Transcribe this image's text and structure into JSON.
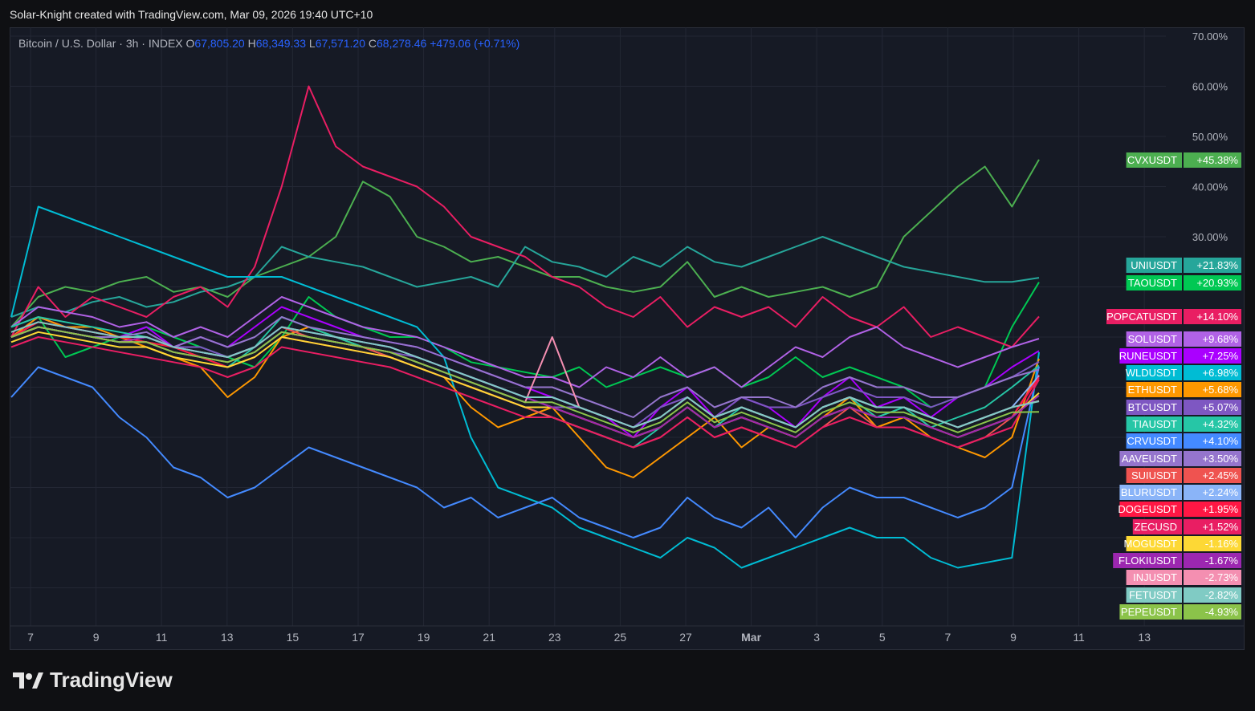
{
  "caption": "Solar-Knight created with TradingView.com, Mar 09, 2026 19:40 UTC+10",
  "legend": {
    "symbol": "Bitcoin / U.S. Dollar · 3h · INDEX",
    "o_label": "O",
    "o_value": "67,805.20",
    "h_label": "H",
    "h_value": "68,349.33",
    "l_label": "L",
    "l_value": "67,571.20",
    "c_label": "C",
    "c_value": "68,278.46",
    "change": "+479.06 (+0.71%)"
  },
  "brand": "TradingView",
  "chart_data": {
    "type": "line",
    "ylim": [
      -70,
      70
    ],
    "y_ticks": [
      70,
      60,
      50,
      40,
      30
    ],
    "y_tick_labels": [
      "70.00%",
      "60.00%",
      "50.00%",
      "40.00%",
      "30.00%"
    ],
    "x_ticks": [
      "7",
      "9",
      "11",
      "13",
      "15",
      "17",
      "19",
      "21",
      "23",
      "25",
      "27",
      "Mar",
      "3",
      "5",
      "7",
      "9",
      "11",
      "13"
    ],
    "grid": true,
    "series": [
      {
        "name": "CVXUSDT",
        "label": "+45.38%",
        "value": 45.38,
        "color": "#4caf50",
        "values": [
          12,
          18,
          20,
          19,
          21,
          22,
          19,
          20,
          18,
          22,
          24,
          26,
          30,
          41,
          38,
          30,
          28,
          25,
          26,
          24,
          22,
          22,
          20,
          19,
          20,
          25,
          18,
          20,
          18,
          19,
          20,
          18,
          20,
          30,
          35,
          40,
          44,
          36,
          45.38
        ]
      },
      {
        "name": "UNIUSDT",
        "label": "+21.83%",
        "value": 21.83,
        "color": "#26a69a",
        "values": [
          14,
          16,
          15,
          17,
          18,
          16,
          17,
          19,
          20,
          22,
          28,
          26,
          25,
          24,
          22,
          20,
          21,
          22,
          20,
          28,
          25,
          24,
          22,
          26,
          24,
          28,
          25,
          24,
          26,
          28,
          30,
          28,
          26,
          24,
          23,
          22,
          21,
          21,
          21.83
        ]
      },
      {
        "name": "TAOUSDT",
        "label": "+20.93%",
        "value": 20.93,
        "color": "#00c853",
        "values": [
          10,
          14,
          6,
          8,
          10,
          12,
          10,
          8,
          6,
          4,
          10,
          18,
          14,
          12,
          10,
          10,
          8,
          5,
          4,
          3,
          2,
          4,
          0,
          2,
          4,
          2,
          4,
          0,
          2,
          6,
          2,
          4,
          2,
          0,
          -4,
          -2,
          0,
          12,
          20.93
        ]
      },
      {
        "name": "POPCATUSDT",
        "label": "+14.10%",
        "value": 14.1,
        "color": "#e91e63",
        "values": [
          10,
          20,
          14,
          18,
          16,
          14,
          18,
          20,
          16,
          24,
          40,
          60,
          48,
          44,
          42,
          40,
          36,
          30,
          28,
          26,
          22,
          20,
          16,
          14,
          18,
          12,
          16,
          14,
          16,
          12,
          18,
          14,
          12,
          16,
          10,
          12,
          10,
          8,
          14.1
        ]
      },
      {
        "name": "SOLUSDT",
        "label": "+9.68%",
        "value": 9.68,
        "color": "#b162e6",
        "values": [
          12,
          16,
          15,
          14,
          12,
          13,
          10,
          12,
          10,
          14,
          18,
          16,
          14,
          12,
          11,
          10,
          8,
          6,
          4,
          2,
          2,
          0,
          4,
          2,
          6,
          2,
          4,
          0,
          4,
          8,
          6,
          10,
          12,
          8,
          6,
          4,
          6,
          8,
          9.68
        ]
      },
      {
        "name": "RUNEUSDT",
        "label": "+7.25%",
        "value": 7.25,
        "color": "#aa00ff",
        "values": [
          10,
          14,
          12,
          11,
          10,
          12,
          8,
          10,
          8,
          12,
          16,
          14,
          12,
          10,
          9,
          8,
          6,
          4,
          2,
          0,
          -2,
          -4,
          -6,
          -10,
          -4,
          0,
          -6,
          -2,
          -4,
          -8,
          -2,
          2,
          -4,
          -2,
          -6,
          -2,
          0,
          4,
          7.25
        ]
      },
      {
        "name": "WLDUSDT",
        "label": "+6.98%",
        "value": 6.98,
        "color": "#00bcd4",
        "values": [
          14,
          36,
          34,
          32,
          30,
          28,
          26,
          24,
          22,
          22,
          22,
          20,
          18,
          16,
          14,
          12,
          6,
          -10,
          -20,
          -22,
          -24,
          -28,
          -30,
          -32,
          -34,
          -30,
          -32,
          -36,
          -34,
          -32,
          -30,
          -28,
          -30,
          -30,
          -34,
          -36,
          -35,
          -34,
          6.98
        ]
      },
      {
        "name": "ETHUSDT",
        "label": "+5.68%",
        "value": 5.68,
        "color": "#ff9800",
        "values": [
          10,
          14,
          12,
          12,
          10,
          8,
          6,
          4,
          -2,
          2,
          10,
          12,
          10,
          8,
          6,
          4,
          2,
          -4,
          -8,
          -6,
          -4,
          -10,
          -16,
          -18,
          -14,
          -10,
          -6,
          -12,
          -8,
          -10,
          -6,
          -2,
          -8,
          -6,
          -10,
          -12,
          -14,
          -10,
          5.68
        ]
      },
      {
        "name": "BTCUSDT",
        "label": "+5.07%",
        "value": 5.07,
        "color": "#7e57c2",
        "values": [
          10,
          12,
          11,
          10,
          9,
          10,
          8,
          8,
          6,
          8,
          12,
          10,
          9,
          8,
          7,
          6,
          4,
          2,
          0,
          -2,
          -4,
          -4,
          -6,
          -8,
          -4,
          -2,
          -6,
          -2,
          -4,
          -4,
          -2,
          0,
          -2,
          -2,
          -4,
          -2,
          0,
          2,
          5.07
        ]
      },
      {
        "name": "TIAUSDT",
        "label": "+4.32%",
        "value": 4.32,
        "color": "#26c6a6",
        "values": [
          12,
          14,
          13,
          12,
          11,
          10,
          8,
          6,
          4,
          8,
          14,
          12,
          10,
          8,
          6,
          4,
          2,
          0,
          -2,
          -4,
          -6,
          -8,
          -10,
          -12,
          -8,
          -4,
          -8,
          -4,
          -6,
          -8,
          -4,
          -2,
          -6,
          -4,
          -8,
          -6,
          -4,
          0,
          4.32
        ]
      },
      {
        "name": "CRVUSDT",
        "label": "+4.10%",
        "value": 4.1,
        "color": "#448aff",
        "values": [
          -2,
          4,
          2,
          0,
          -6,
          -10,
          -16,
          -18,
          -22,
          -20,
          -16,
          -12,
          -14,
          -16,
          -18,
          -20,
          -24,
          -22,
          -26,
          -24,
          -22,
          -26,
          -28,
          -30,
          -28,
          -22,
          -26,
          -28,
          -24,
          -30,
          -24,
          -20,
          -22,
          -22,
          -24,
          -26,
          -24,
          -20,
          4.1
        ]
      },
      {
        "name": "AAVEUSDT",
        "label": "+3.50%",
        "value": 3.5,
        "color": "#9575cd",
        "values": [
          10,
          12,
          11,
          10,
          10,
          11,
          8,
          10,
          8,
          10,
          14,
          12,
          11,
          10,
          9,
          8,
          6,
          4,
          2,
          0,
          0,
          -2,
          -4,
          -6,
          -2,
          0,
          -4,
          -2,
          -2,
          -4,
          0,
          2,
          0,
          0,
          -2,
          -2,
          0,
          2,
          3.5
        ]
      },
      {
        "name": "SUIUSDT",
        "label": "+2.45%",
        "value": 2.45,
        "color": "#ef5350",
        "values": [
          10,
          13,
          12,
          11,
          10,
          9,
          8,
          7,
          6,
          8,
          12,
          10,
          9,
          8,
          6,
          4,
          2,
          0,
          -2,
          -4,
          -6,
          -8,
          -10,
          -12,
          -10,
          -6,
          -10,
          -8,
          -10,
          -12,
          -8,
          -4,
          -8,
          -8,
          -10,
          -12,
          -10,
          -6,
          2.45
        ]
      },
      {
        "name": "BLURUSDT",
        "label": "+2.24%",
        "value": 2.24,
        "color": "#8ab4f8",
        "values": [
          10,
          12,
          11,
          10,
          9,
          10,
          8,
          7,
          6,
          8,
          12,
          11,
          10,
          9,
          8,
          6,
          4,
          2,
          0,
          -2,
          -2,
          -4,
          -6,
          -8,
          -6,
          -2,
          -6,
          -4,
          -6,
          -8,
          -4,
          -2,
          -4,
          -4,
          -6,
          -8,
          -6,
          -4,
          2.24
        ]
      },
      {
        "name": "DOGEUSDT",
        "label": "+1.95%",
        "value": 1.95,
        "color": "#ff1744",
        "values": [
          10,
          13,
          12,
          11,
          10,
          9,
          8,
          6,
          4,
          6,
          10,
          9,
          8,
          7,
          6,
          4,
          2,
          0,
          -2,
          -4,
          -4,
          -6,
          -8,
          -10,
          -8,
          -4,
          -8,
          -6,
          -8,
          -10,
          -6,
          -4,
          -6,
          -6,
          -8,
          -10,
          -8,
          -6,
          1.95
        ]
      },
      {
        "name": "ZECUSD",
        "label": "+1.52%",
        "value": 1.52,
        "color": "#e91e63",
        "values": [
          8,
          10,
          9,
          8,
          7,
          6,
          5,
          4,
          2,
          4,
          8,
          7,
          6,
          5,
          4,
          2,
          0,
          -2,
          -4,
          -6,
          -6,
          -8,
          -10,
          -12,
          -10,
          -6,
          -10,
          -8,
          -10,
          -12,
          -8,
          -6,
          -8,
          -8,
          -10,
          -12,
          -10,
          -8,
          1.52
        ]
      },
      {
        "name": "MOGUSDT",
        "label": "-1.16%",
        "value": -1.16,
        "color": "#fdd835",
        "values": [
          9,
          11,
          10,
          9,
          8,
          8,
          6,
          5,
          4,
          6,
          10,
          9,
          8,
          7,
          6,
          4,
          2,
          0,
          -2,
          -4,
          -4,
          -6,
          -8,
          -10,
          -8,
          -4,
          -8,
          -6,
          -8,
          -10,
          -6,
          -4,
          -6,
          -6,
          -8,
          -10,
          -8,
          -6,
          -1.16
        ]
      },
      {
        "name": "FLOKIUSDT",
        "label": "-1.67%",
        "value": -1.67,
        "color": "#9c27b0",
        "values": [
          10,
          12,
          11,
          10,
          9,
          10,
          8,
          7,
          6,
          8,
          12,
          11,
          10,
          9,
          8,
          6,
          4,
          2,
          0,
          -2,
          -4,
          -6,
          -8,
          -10,
          -8,
          -4,
          -8,
          -6,
          -8,
          -10,
          -6,
          -4,
          -6,
          -6,
          -8,
          -10,
          -8,
          -6,
          -1.67
        ]
      },
      {
        "name": "INJUSDT",
        "label": "-2.73%",
        "value": -2.73,
        "color": "#f48fb1",
        "values": [
          10,
          12,
          11,
          10,
          9,
          9,
          7,
          6,
          5,
          7,
          11,
          10,
          9,
          8,
          7,
          5,
          3,
          1,
          -1,
          -3,
          10,
          -4,
          -6,
          -8,
          -6,
          -2,
          -6,
          -4,
          -6,
          -8,
          -4,
          -2,
          -4,
          -4,
          -6,
          -8,
          -6,
          -4,
          -2.73
        ]
      },
      {
        "name": "FETUSDT",
        "label": "-2.82%",
        "value": -2.82,
        "color": "#80cbc4",
        "values": [
          11,
          13,
          12,
          11,
          10,
          10,
          8,
          7,
          6,
          8,
          12,
          11,
          10,
          9,
          8,
          6,
          4,
          2,
          0,
          -2,
          -2,
          -4,
          -6,
          -8,
          -6,
          -2,
          -6,
          -4,
          -6,
          -8,
          -4,
          -2,
          -4,
          -4,
          -6,
          -8,
          -6,
          -4,
          -2.82
        ]
      },
      {
        "name": "PEPEUSDT",
        "label": "-4.93%",
        "value": -4.93,
        "color": "#8bc34a",
        "values": [
          10,
          12,
          11,
          10,
          9,
          9,
          7,
          6,
          5,
          7,
          11,
          10,
          9,
          8,
          7,
          5,
          3,
          1,
          -1,
          -3,
          -3,
          -5,
          -7,
          -9,
          -7,
          -3,
          -7,
          -5,
          -7,
          -9,
          -5,
          -3,
          -5,
          -5,
          -7,
          -9,
          -7,
          -5,
          -4.93
        ]
      }
    ]
  }
}
